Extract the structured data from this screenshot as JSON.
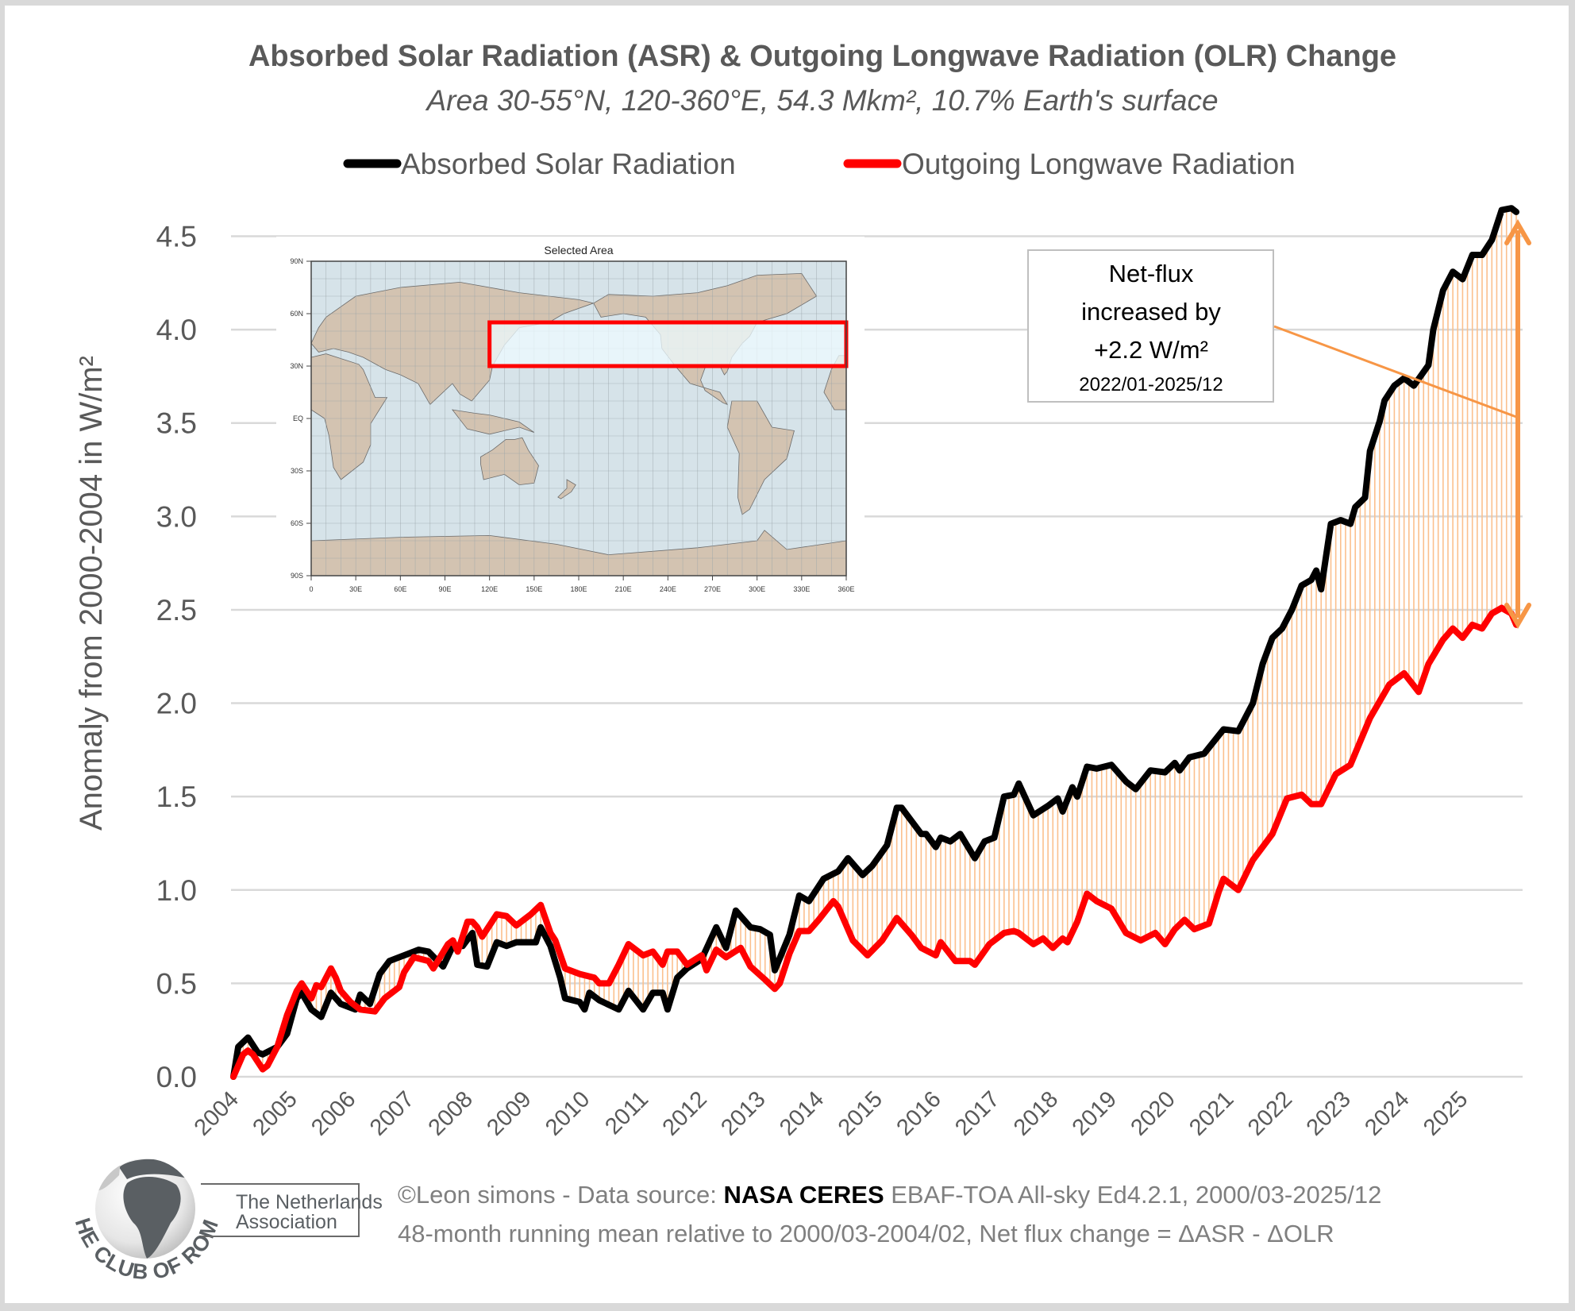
{
  "chart_data": {
    "type": "line",
    "title": "Absorbed Solar Radiation (ASR) & Outgoing Longwave Radiation (OLR) Change",
    "subtitle": "Area 30-55°N, 120-360°E, 54.3 Mkm², 10.7% Earth's surface",
    "ylabel": "Anomaly from 2000-2004 in W/m²",
    "xlabel": "",
    "ylim": [
      0,
      4.5
    ],
    "yticks": [
      "0.0",
      "0.5",
      "1.0",
      "1.5",
      "2.0",
      "2.5",
      "3.0",
      "3.5",
      "4.0",
      "4.5"
    ],
    "xticks": [
      "2004",
      "2005",
      "2006",
      "2007",
      "2008",
      "2009",
      "2010",
      "2011",
      "2012",
      "2013",
      "2014",
      "2015",
      "2016",
      "2017",
      "2018",
      "2019",
      "2020",
      "2021",
      "2022",
      "2023",
      "2024",
      "2025"
    ],
    "grid": "horizontal",
    "legend_position": "top",
    "fill_between": {
      "description_color": "#fbc08e"
    },
    "series": [
      {
        "name": "Absorbed Solar Radiation",
        "color": "#000000",
        "x": [
          "2004-01",
          "2004-02",
          "2004-04",
          "2004-06",
          "2004-07",
          "2004-10",
          "2004-12",
          "2005-02",
          "2005-03",
          "2005-05",
          "2005-07",
          "2005-09",
          "2005-11",
          "2006-02",
          "2006-03",
          "2006-05",
          "2006-07",
          "2006-09",
          "2006-12",
          "2007-03",
          "2007-05",
          "2007-08",
          "2007-10",
          "2007-12",
          "2008-02",
          "2008-03",
          "2008-05",
          "2008-07",
          "2008-09",
          "2008-11",
          "2009-01",
          "2009-03",
          "2009-04",
          "2009-06",
          "2009-08",
          "2009-09",
          "2009-12",
          "2010-01",
          "2010-02",
          "2010-04",
          "2010-08",
          "2010-10",
          "2011-01",
          "2011-03",
          "2011-05",
          "2011-06",
          "2011-08",
          "2011-10",
          "2012-01",
          "2012-04",
          "2012-06",
          "2012-08",
          "2012-11",
          "2013-01",
          "2013-03",
          "2013-04",
          "2013-07",
          "2013-09",
          "2013-11",
          "2014-02",
          "2014-05",
          "2014-07",
          "2014-10",
          "2014-12",
          "2015-03",
          "2015-05",
          "2015-06",
          "2015-10",
          "2015-11",
          "2016-01",
          "2016-02",
          "2016-04",
          "2016-06",
          "2016-09",
          "2016-11",
          "2017-01",
          "2017-03",
          "2017-05",
          "2017-06",
          "2017-09",
          "2017-12",
          "2018-02",
          "2018-03",
          "2018-05",
          "2018-06",
          "2018-08",
          "2018-10",
          "2019-01",
          "2019-04",
          "2019-06",
          "2019-09",
          "2019-12",
          "2020-02",
          "2020-03",
          "2020-05",
          "2020-08",
          "2020-12",
          "2021-03",
          "2021-06",
          "2021-08",
          "2021-10",
          "2021-12",
          "2022-02",
          "2022-04",
          "2022-06",
          "2022-07",
          "2022-08",
          "2022-10",
          "2022-12",
          "2023-02",
          "2023-03",
          "2023-05",
          "2023-06",
          "2023-08",
          "2023-09",
          "2023-11",
          "2024-01",
          "2024-03",
          "2024-06",
          "2024-07",
          "2024-09",
          "2024-11",
          "2025-01",
          "2025-03",
          "2025-05",
          "2025-07",
          "2025-09",
          "2025-11",
          "2025-12"
        ],
        "values": [
          0.0,
          0.16,
          0.21,
          0.13,
          0.12,
          0.16,
          0.23,
          0.42,
          0.45,
          0.36,
          0.32,
          0.45,
          0.39,
          0.36,
          0.44,
          0.39,
          0.55,
          0.62,
          0.65,
          0.68,
          0.67,
          0.59,
          0.7,
          0.7,
          0.77,
          0.6,
          0.59,
          0.72,
          0.7,
          0.72,
          0.72,
          0.72,
          0.8,
          0.7,
          0.53,
          0.42,
          0.4,
          0.36,
          0.45,
          0.41,
          0.36,
          0.46,
          0.36,
          0.45,
          0.45,
          0.36,
          0.53,
          0.58,
          0.63,
          0.8,
          0.69,
          0.89,
          0.8,
          0.79,
          0.76,
          0.57,
          0.76,
          0.97,
          0.94,
          1.06,
          1.1,
          1.17,
          1.08,
          1.13,
          1.24,
          1.44,
          1.44,
          1.3,
          1.3,
          1.23,
          1.28,
          1.26,
          1.3,
          1.17,
          1.26,
          1.28,
          1.5,
          1.51,
          1.57,
          1.4,
          1.45,
          1.49,
          1.42,
          1.55,
          1.5,
          1.66,
          1.65,
          1.67,
          1.58,
          1.54,
          1.64,
          1.63,
          1.68,
          1.64,
          1.71,
          1.73,
          1.86,
          1.85,
          2.0,
          2.21,
          2.35,
          2.4,
          2.5,
          2.63,
          2.66,
          2.71,
          2.61,
          2.96,
          2.98,
          2.96,
          3.05,
          3.1,
          3.35,
          3.51,
          3.62,
          3.7,
          3.74,
          3.7,
          3.81,
          4.0,
          4.21,
          4.31,
          4.27,
          4.4,
          4.4,
          4.48,
          4.64,
          4.65,
          4.63
        ]
      },
      {
        "name": "Outgoing Longwave Radiation",
        "color": "#ff0000",
        "x": [
          "2004-01",
          "2004-03",
          "2004-04",
          "2004-05",
          "2004-07",
          "2004-08",
          "2004-10",
          "2004-12",
          "2005-02",
          "2005-03",
          "2005-05",
          "2005-06",
          "2005-07",
          "2005-09",
          "2005-10",
          "2005-11",
          "2006-01",
          "2006-03",
          "2006-06",
          "2006-08",
          "2006-11",
          "2006-12",
          "2007-02",
          "2007-05",
          "2007-06",
          "2007-09",
          "2007-10",
          "2007-11",
          "2008-01",
          "2008-02",
          "2008-03",
          "2008-04",
          "2008-07",
          "2008-09",
          "2008-11",
          "2009-01",
          "2009-02",
          "2009-04",
          "2009-06",
          "2009-07",
          "2009-09",
          "2009-12",
          "2010-03",
          "2010-04",
          "2010-06",
          "2010-08",
          "2010-10",
          "2011-01",
          "2011-03",
          "2011-05",
          "2011-06",
          "2011-08",
          "2011-10",
          "2012-01",
          "2012-02",
          "2012-04",
          "2012-06",
          "2012-09",
          "2012-11",
          "2013-02",
          "2013-04",
          "2013-05",
          "2013-07",
          "2013-09",
          "2013-11",
          "2014-01",
          "2014-04",
          "2014-05",
          "2014-08",
          "2014-11",
          "2015-02",
          "2015-05",
          "2015-08",
          "2015-10",
          "2016-01",
          "2016-02",
          "2016-05",
          "2016-08",
          "2016-09",
          "2016-12",
          "2017-03",
          "2017-05",
          "2017-06",
          "2017-09",
          "2017-11",
          "2018-01",
          "2018-03",
          "2018-04",
          "2018-06",
          "2018-08",
          "2018-10",
          "2019-01",
          "2019-04",
          "2019-07",
          "2019-10",
          "2019-12",
          "2020-02",
          "2020-04",
          "2020-06",
          "2020-09",
          "2020-11",
          "2020-12",
          "2021-03",
          "2021-06",
          "2021-10",
          "2022-01",
          "2022-04",
          "2022-06",
          "2022-08",
          "2022-11",
          "2023-02",
          "2023-06",
          "2023-10",
          "2024-01",
          "2024-04",
          "2024-06",
          "2024-09",
          "2024-11",
          "2025-01",
          "2025-03",
          "2025-05",
          "2025-07",
          "2025-09",
          "2025-11",
          "2025-12"
        ],
        "values": [
          0.0,
          0.12,
          0.14,
          0.12,
          0.04,
          0.06,
          0.16,
          0.33,
          0.46,
          0.5,
          0.42,
          0.49,
          0.48,
          0.58,
          0.53,
          0.46,
          0.4,
          0.36,
          0.35,
          0.42,
          0.48,
          0.56,
          0.64,
          0.62,
          0.58,
          0.71,
          0.73,
          0.67,
          0.83,
          0.83,
          0.8,
          0.75,
          0.87,
          0.86,
          0.81,
          0.85,
          0.87,
          0.92,
          0.77,
          0.73,
          0.58,
          0.55,
          0.53,
          0.5,
          0.5,
          0.6,
          0.71,
          0.65,
          0.67,
          0.6,
          0.67,
          0.67,
          0.6,
          0.65,
          0.57,
          0.68,
          0.64,
          0.69,
          0.59,
          0.52,
          0.47,
          0.5,
          0.66,
          0.78,
          0.78,
          0.84,
          0.94,
          0.91,
          0.73,
          0.65,
          0.73,
          0.85,
          0.76,
          0.69,
          0.65,
          0.72,
          0.62,
          0.62,
          0.6,
          0.71,
          0.77,
          0.78,
          0.77,
          0.71,
          0.74,
          0.69,
          0.74,
          0.72,
          0.83,
          0.98,
          0.94,
          0.9,
          0.77,
          0.73,
          0.77,
          0.71,
          0.79,
          0.84,
          0.79,
          0.82,
          0.99,
          1.06,
          1.0,
          1.16,
          1.3,
          1.49,
          1.51,
          1.46,
          1.46,
          1.62,
          1.67,
          1.92,
          2.1,
          2.16,
          2.06,
          2.21,
          2.34,
          2.4,
          2.35,
          2.42,
          2.4,
          2.48,
          2.51,
          2.48,
          2.42
        ]
      }
    ],
    "annotation": {
      "line1": "Net-flux",
      "line2": "increased by",
      "line3": "+2.2 W/m²",
      "line4": "2022/01-2025/12",
      "color": "#f79646"
    }
  },
  "map_inset": {
    "title": "Selected Area",
    "lat_labels": [
      "90N",
      "60N",
      "30N",
      "EQ",
      "30S",
      "60S",
      "90S"
    ],
    "lon_labels": [
      "0",
      "30E",
      "60E",
      "90E",
      "120E",
      "150E",
      "180E",
      "210E",
      "240E",
      "270E",
      "300E",
      "330E",
      "360E"
    ],
    "selected_region": {
      "lat": [
        30,
        55
      ],
      "lon": [
        120,
        360
      ]
    },
    "highlight_color": "#ff0000"
  },
  "footer": {
    "credit_prefix": "©Leon simons - Data source: ",
    "credit_bold": "NASA CERES",
    "credit_suffix": " EBAF-TOA All-sky Ed4.2.1, 2000/03-2025/12",
    "note": "48-month running mean relative to 2000/03-2004/02, Net flux change = ΔASR - ΔOLR"
  },
  "logo": {
    "arc_text": "THE CLUB OF ROME",
    "box_line1": "The Netherlands",
    "box_line2": "Association"
  }
}
